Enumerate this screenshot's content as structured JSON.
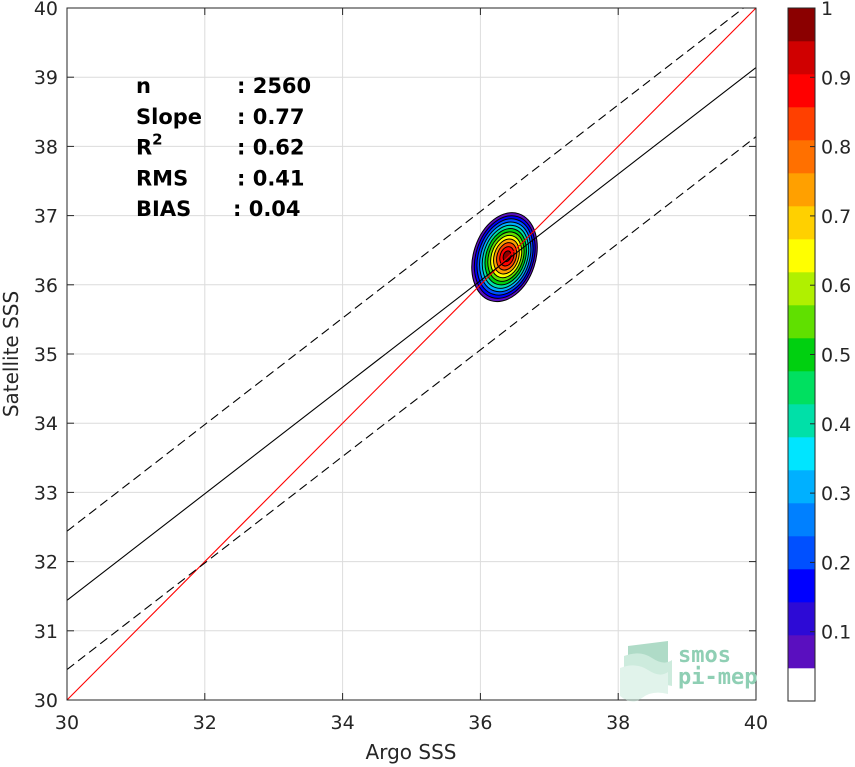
{
  "chart_data": {
    "type": "scatter",
    "subtype": "density-contour",
    "xlabel": "Argo SSS",
    "ylabel": "Satellite SSS",
    "xlim": [
      30,
      40
    ],
    "ylim": [
      30,
      40
    ],
    "xticks": [
      30,
      32,
      34,
      36,
      38,
      40
    ],
    "yticks": [
      30,
      31,
      32,
      33,
      34,
      35,
      36,
      37,
      38,
      39,
      40
    ],
    "grid": true,
    "density": {
      "center": [
        36.35,
        36.4
      ],
      "outer_half_width": [
        0.45,
        0.66
      ],
      "levels": 12
    },
    "lines": [
      {
        "kind": "identity",
        "color": "#ff0000",
        "dash": "solid",
        "points": [
          [
            30,
            30
          ],
          [
            40,
            40
          ]
        ]
      },
      {
        "kind": "regression",
        "color": "#000000",
        "dash": "solid",
        "points": [
          [
            30,
            31.44
          ],
          [
            40,
            39.14
          ]
        ]
      },
      {
        "kind": "regression-upper",
        "color": "#000000",
        "dash": "dashed",
        "points": [
          [
            30,
            32.44
          ],
          [
            40,
            40.14
          ]
        ]
      },
      {
        "kind": "regression-lower",
        "color": "#000000",
        "dash": "dashed",
        "points": [
          [
            30,
            30.44
          ],
          [
            40,
            38.14
          ]
        ]
      }
    ],
    "stats": [
      {
        "label": "n",
        "value": ": 2560"
      },
      {
        "label": "Slope",
        "value": ": 0.77"
      },
      {
        "label": "R",
        "sup": "2",
        "value": ": 0.62"
      },
      {
        "label": "RMS",
        "value": ": 0.41"
      },
      {
        "label": "BIAS",
        "value": ": 0.04"
      }
    ],
    "colorbar": {
      "min": 0,
      "max": 1,
      "ticks": [
        "0.1",
        "0.2",
        "0.3",
        "0.4",
        "0.5",
        "0.6",
        "0.7",
        "0.8",
        "0.9",
        "1"
      ],
      "first_cell_color": "#ffffff",
      "colors": [
        "#ffffff",
        "#5a0fbf",
        "#2d0ad6",
        "#0000ff",
        "#0050ff",
        "#0080ff",
        "#00b0ff",
        "#00e5ff",
        "#00e0a8",
        "#00e060",
        "#00d010",
        "#60e000",
        "#b0f000",
        "#ffff00",
        "#ffd000",
        "#ffa000",
        "#ff7000",
        "#ff4000",
        "#ff0000",
        "#d00000",
        "#8b0000"
      ]
    }
  },
  "logo": {
    "line1": "smos",
    "line2": "pi-mep"
  }
}
